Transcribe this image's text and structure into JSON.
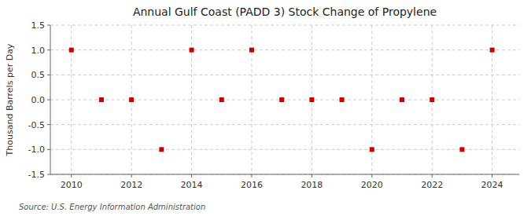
{
  "chart_data": {
    "type": "scatter",
    "title": "Annual Gulf Coast (PADD 3) Stock Change of Propylene",
    "y_label": "Thousand Barrels per Day",
    "annotations": [
      "Source: U.S. Energy Information Administration"
    ],
    "x": [
      2010,
      2011,
      2012,
      2013,
      2014,
      2015,
      2016,
      2017,
      2018,
      2019,
      2020,
      2021,
      2022,
      2023,
      2024
    ],
    "values": [
      1.0,
      0.0,
      0.0,
      -1.0,
      1.0,
      0.0,
      1.0,
      0.0,
      0.0,
      0.0,
      -1.0,
      0.0,
      0.0,
      -1.0,
      1.0
    ],
    "color": "#cc0000",
    "marker": "square",
    "xlim": [
      2009.3,
      2024.9
    ],
    "xticks": [
      2010,
      2012,
      2014,
      2016,
      2018,
      2020,
      2022,
      2024
    ],
    "ylim": [
      -1.5,
      1.5
    ],
    "yticks": [
      -1.5,
      {
        "value": -1.0,
        "label": "-1.0"
      },
      -0.5,
      {
        "value": 0.0,
        "label": "0.0"
      },
      0.5,
      {
        "value": 1.0,
        "label": "1.0"
      },
      1.5
    ],
    "grid": true
  }
}
